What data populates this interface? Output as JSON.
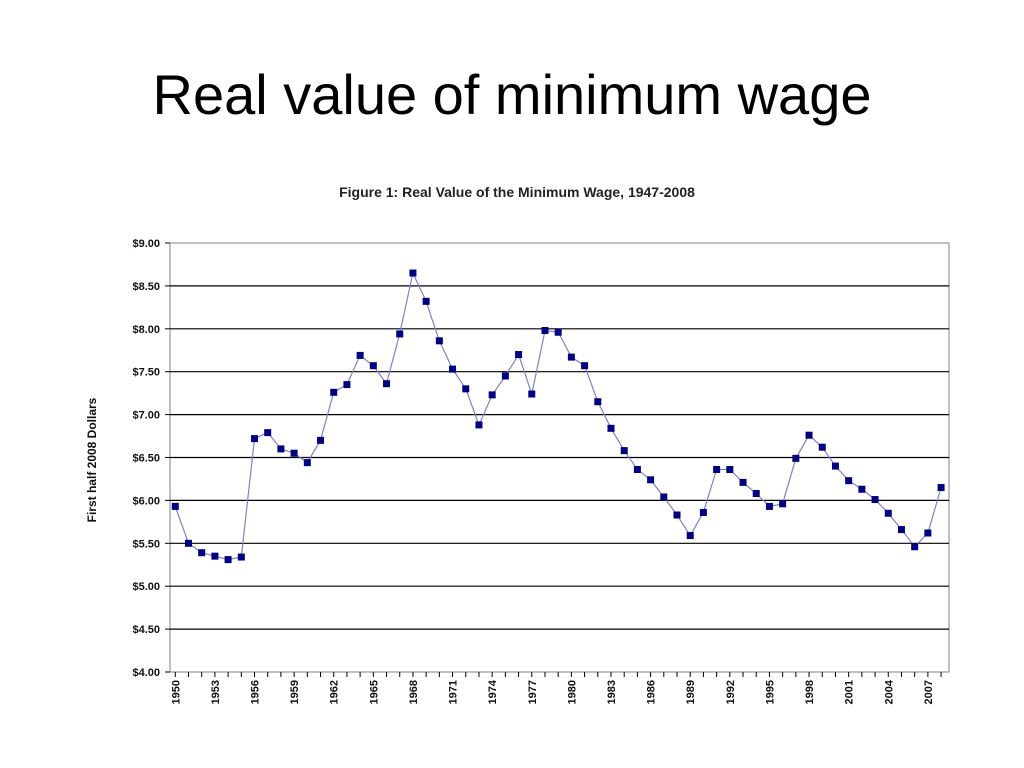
{
  "slide": {
    "title": "Real value of minimum wage"
  },
  "chart_data": {
    "type": "line",
    "title": "Figure 1: Real Value of the Minimum Wage, 1947-2008",
    "xlabel": "",
    "ylabel": "First half 2008 Dollars",
    "ylim": [
      4.0,
      9.0
    ],
    "xlim": [
      1950,
      2008
    ],
    "y_ticks": [
      "$4.00",
      "$4.50",
      "$5.00",
      "$5.50",
      "$6.00",
      "$6.50",
      "$7.00",
      "$7.50",
      "$8.00",
      "$8.50",
      "$9.00"
    ],
    "y_tick_values": [
      4.0,
      4.5,
      5.0,
      5.5,
      6.0,
      6.5,
      7.0,
      7.5,
      8.0,
      8.5,
      9.0
    ],
    "x_ticks": [
      "1950",
      "1953",
      "1956",
      "1959",
      "1962",
      "1965",
      "1968",
      "1971",
      "1974",
      "1977",
      "1980",
      "1983",
      "1986",
      "1989",
      "1992",
      "1995",
      "1998",
      "2001",
      "2004",
      "2007"
    ],
    "x_tick_values": [
      1950,
      1953,
      1956,
      1959,
      1962,
      1965,
      1968,
      1971,
      1974,
      1977,
      1980,
      1983,
      1986,
      1989,
      1992,
      1995,
      1998,
      2001,
      2004,
      2007
    ],
    "grid": "horizontal",
    "line_color": "#8080c8",
    "marker_color": "#000080",
    "series": [
      {
        "x": [
          1950,
          1951,
          1952,
          1953,
          1954,
          1955,
          1956,
          1957,
          1958,
          1959,
          1960,
          1961,
          1962,
          1963,
          1964,
          1965,
          1966,
          1967,
          1968,
          1969,
          1970,
          1971,
          1972,
          1973,
          1974,
          1975,
          1976,
          1977,
          1978,
          1979,
          1980,
          1981,
          1982,
          1983,
          1984,
          1985,
          1986,
          1987,
          1988,
          1989,
          1990,
          1991,
          1992,
          1993,
          1994,
          1995,
          1996,
          1997,
          1998,
          1999,
          2000,
          2001,
          2002,
          2003,
          2004,
          2005,
          2006,
          2007,
          2008
        ],
        "values": [
          5.93,
          5.5,
          5.39,
          5.35,
          5.31,
          5.34,
          6.72,
          6.79,
          6.6,
          6.55,
          6.44,
          6.7,
          7.26,
          7.35,
          7.69,
          7.57,
          7.36,
          7.94,
          8.65,
          8.32,
          7.86,
          7.53,
          7.3,
          6.88,
          7.23,
          7.45,
          7.7,
          7.24,
          7.98,
          7.96,
          7.67,
          7.57,
          7.15,
          6.84,
          6.58,
          6.36,
          6.24,
          6.04,
          5.83,
          5.59,
          5.86,
          6.36,
          6.36,
          6.21,
          6.08,
          5.93,
          5.96,
          6.49,
          6.76,
          6.62,
          6.4,
          6.23,
          6.13,
          6.01,
          5.85,
          5.66,
          5.46,
          5.62,
          6.15
        ]
      }
    ]
  }
}
